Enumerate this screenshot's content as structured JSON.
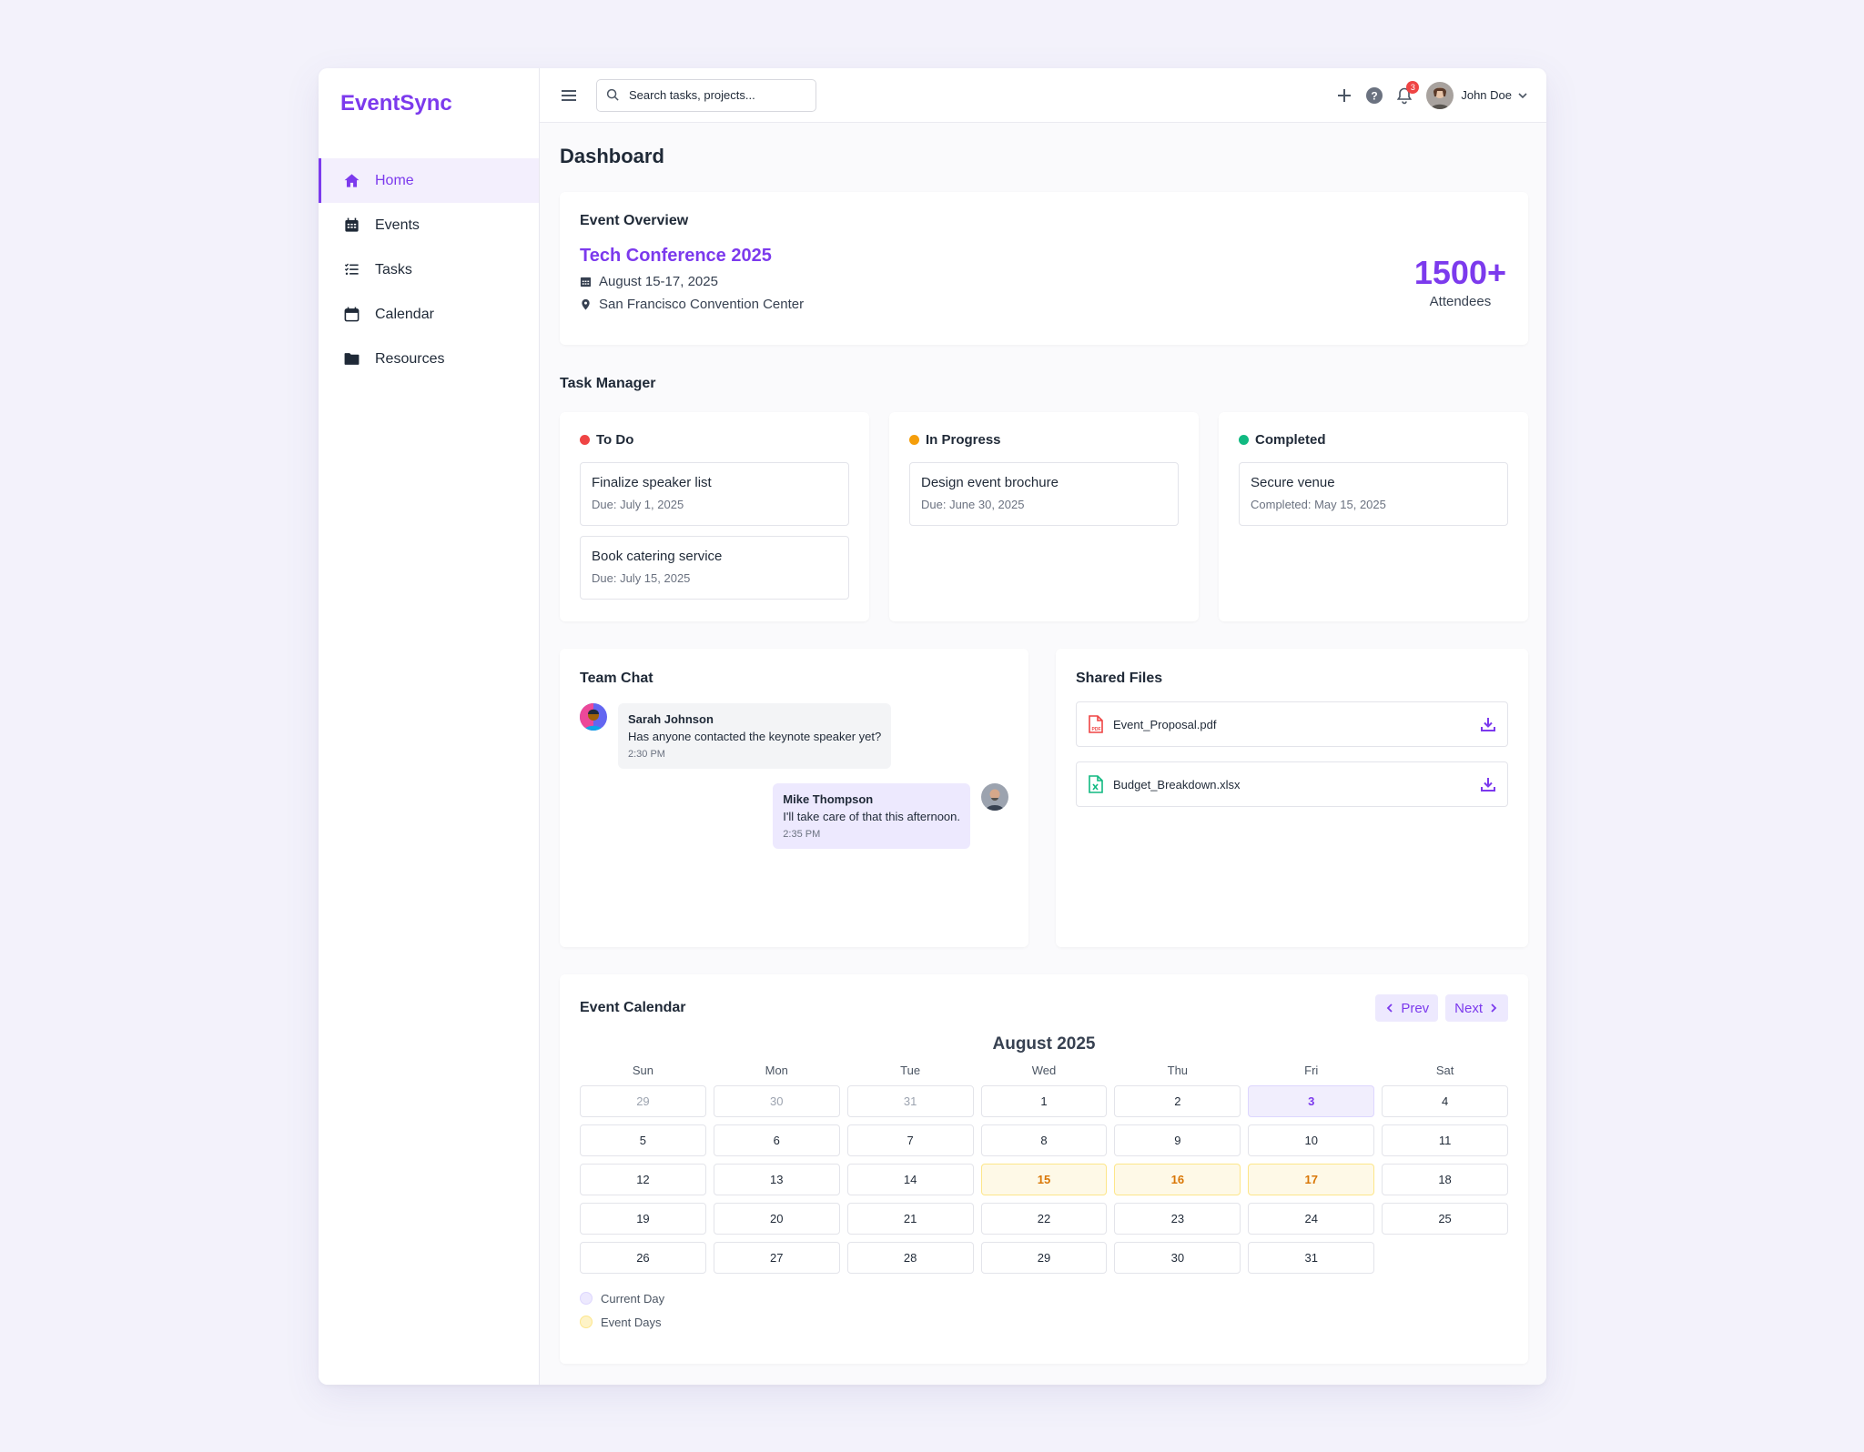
{
  "app": {
    "name": "EventSync"
  },
  "sidebar": {
    "items": [
      {
        "label": "Home",
        "icon": "home-icon",
        "active": true
      },
      {
        "label": "Events",
        "icon": "calendar-grid-icon"
      },
      {
        "label": "Tasks",
        "icon": "list-check-icon"
      },
      {
        "label": "Calendar",
        "icon": "calendar-icon"
      },
      {
        "label": "Resources",
        "icon": "folder-icon"
      }
    ]
  },
  "topbar": {
    "search_placeholder": "Search tasks, projects...",
    "notification_count": "3",
    "user_name": "John Doe"
  },
  "page": {
    "title": "Dashboard"
  },
  "overview": {
    "title": "Event Overview",
    "event_name": "Tech Conference 2025",
    "dates": "August 15-17, 2025",
    "location": "San Francisco Convention Center",
    "attendees_value": "1500+",
    "attendees_label": "Attendees"
  },
  "task_manager": {
    "title": "Task Manager",
    "columns": [
      {
        "name": "To Do",
        "color": "#ef4444",
        "tasks": [
          {
            "title": "Finalize speaker list",
            "sub": "Due: July 1, 2025"
          },
          {
            "title": "Book catering service",
            "sub": "Due: July 15, 2025"
          }
        ]
      },
      {
        "name": "In Progress",
        "color": "#f59e0b",
        "tasks": [
          {
            "title": "Design event brochure",
            "sub": "Due: June 30, 2025"
          }
        ]
      },
      {
        "name": "Completed",
        "color": "#10b981",
        "tasks": [
          {
            "title": "Secure venue",
            "sub": "Completed: May 15, 2025"
          }
        ]
      }
    ]
  },
  "chat": {
    "title": "Team Chat",
    "messages": [
      {
        "name": "Sarah Johnson",
        "text": "Has anyone contacted the keynote speaker yet?",
        "time": "2:30 PM"
      },
      {
        "name": "Mike Thompson",
        "text": "I'll take care of that this afternoon.",
        "time": "2:35 PM"
      }
    ]
  },
  "files": {
    "title": "Shared Files",
    "items": [
      {
        "name": "Event_Proposal.pdf",
        "icon": "pdf-file-icon"
      },
      {
        "name": "Budget_Breakdown.xlsx",
        "icon": "excel-file-icon"
      }
    ]
  },
  "calendar": {
    "title": "Event Calendar",
    "prev_label": "Prev",
    "next_label": "Next",
    "month": "August 2025",
    "weekdays": [
      "Sun",
      "Mon",
      "Tue",
      "Wed",
      "Thu",
      "Fri",
      "Sat"
    ],
    "days": [
      {
        "d": "29",
        "type": "muted"
      },
      {
        "d": "30",
        "type": "muted"
      },
      {
        "d": "31",
        "type": "muted"
      },
      {
        "d": "1"
      },
      {
        "d": "2"
      },
      {
        "d": "3",
        "type": "today"
      },
      {
        "d": "4"
      },
      {
        "d": "5"
      },
      {
        "d": "6"
      },
      {
        "d": "7"
      },
      {
        "d": "8"
      },
      {
        "d": "9"
      },
      {
        "d": "10"
      },
      {
        "d": "11"
      },
      {
        "d": "12"
      },
      {
        "d": "13"
      },
      {
        "d": "14"
      },
      {
        "d": "15",
        "type": "event"
      },
      {
        "d": "16",
        "type": "event"
      },
      {
        "d": "17",
        "type": "event"
      },
      {
        "d": "18"
      },
      {
        "d": "19"
      },
      {
        "d": "20"
      },
      {
        "d": "21"
      },
      {
        "d": "22"
      },
      {
        "d": "23"
      },
      {
        "d": "24"
      },
      {
        "d": "25"
      },
      {
        "d": "26"
      },
      {
        "d": "27"
      },
      {
        "d": "28"
      },
      {
        "d": "29"
      },
      {
        "d": "30"
      },
      {
        "d": "31"
      }
    ],
    "legend": [
      {
        "label": "Current Day",
        "color": "#ede9fe"
      },
      {
        "label": "Event Days",
        "color": "#fef3c7"
      }
    ]
  }
}
